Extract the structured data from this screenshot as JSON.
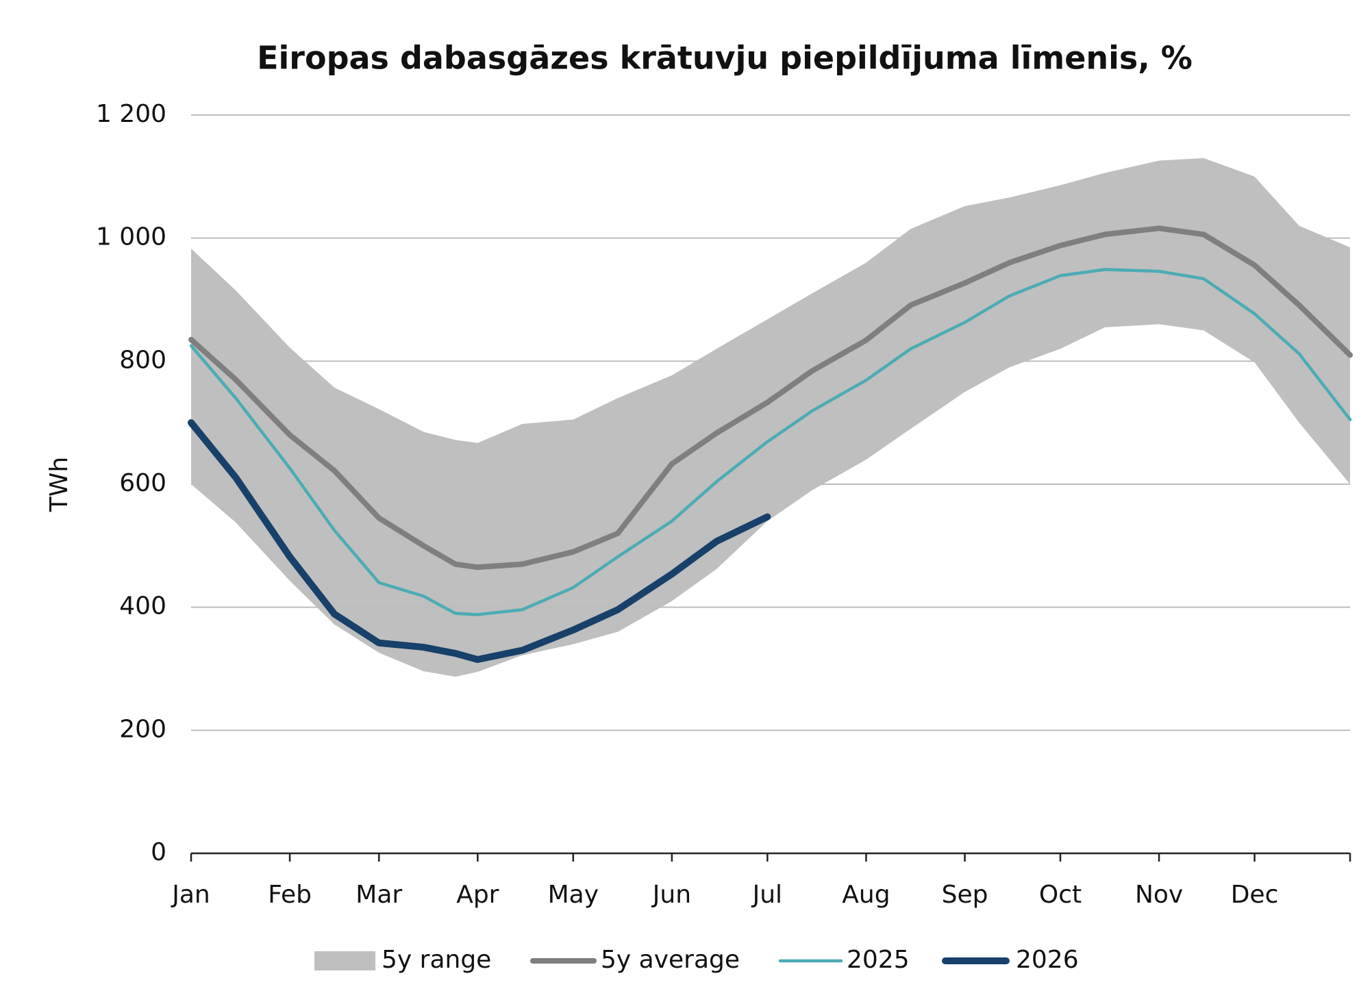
{
  "chart_data": {
    "type": "line",
    "title": "Eiropas dabasgāzes krātuvju piepildījuma līmenis, %",
    "y_label": "TWh",
    "x": [
      1,
      15,
      32,
      46,
      60,
      74,
      84,
      91,
      105,
      121,
      135,
      152,
      166,
      182,
      196,
      213,
      227,
      244,
      258,
      274,
      288,
      305,
      319,
      335,
      349,
      365
    ],
    "xlim": [
      1,
      365
    ],
    "xticks": [
      {
        "value": 1,
        "label": "Jan"
      },
      {
        "value": 32,
        "label": "Feb"
      },
      {
        "value": 60,
        "label": "Mar"
      },
      {
        "value": 91,
        "label": "Apr"
      },
      {
        "value": 121,
        "label": "May"
      },
      {
        "value": 152,
        "label": "Jun"
      },
      {
        "value": 182,
        "label": "Jul"
      },
      {
        "value": 213,
        "label": "Aug"
      },
      {
        "value": 244,
        "label": "Sep"
      },
      {
        "value": 274,
        "label": "Oct"
      },
      {
        "value": 305,
        "label": "Nov"
      },
      {
        "value": 335,
        "label": "Dec"
      }
    ],
    "ylim": [
      0,
      1200
    ],
    "yticks": [
      0,
      200,
      400,
      600,
      800,
      {
        "value": 1000,
        "label": "1 000"
      },
      {
        "value": 1200,
        "label": "1 200"
      }
    ],
    "grid": true,
    "range": {
      "name": "5y range",
      "color": "#bfbfbf",
      "upper": [
        983,
        915,
        822,
        757,
        722,
        685,
        672,
        667,
        698,
        705,
        740,
        777,
        820,
        868,
        910,
        960,
        1015,
        1052,
        1066,
        1086,
        1106,
        1126,
        1130,
        1100,
        1020,
        985
      ],
      "lower": [
        600,
        538,
        443,
        372,
        326,
        296,
        287,
        295,
        322,
        340,
        360,
        410,
        462,
        540,
        590,
        640,
        690,
        750,
        790,
        820,
        855,
        860,
        850,
        798,
        700,
        600
      ]
    },
    "series": [
      {
        "name": "5y average",
        "color": "#7f7f7f",
        "values": [
          835,
          770,
          680,
          622,
          545,
          500,
          470,
          465,
          470,
          490,
          520,
          633,
          683,
          733,
          784,
          834,
          891,
          927,
          960,
          988,
          1006,
          1016,
          1006,
          956,
          891,
          810
        ]
      },
      {
        "name": "2025",
        "color": "#4bacb4",
        "values": [
          825,
          740,
          626,
          525,
          440,
          418,
          390,
          388,
          396,
          432,
          482,
          540,
          604,
          669,
          719,
          769,
          820,
          863,
          906,
          939,
          949,
          946,
          934,
          877,
          812,
          705
        ]
      },
      {
        "name": "2026",
        "color": "#17406a",
        "values": [
          700,
          611,
          482,
          389,
          342,
          335,
          325,
          315,
          330,
          363,
          396,
          454,
          507,
          547,
          null,
          null,
          null,
          null,
          null,
          null,
          null,
          null,
          null,
          null,
          null,
          null
        ]
      }
    ]
  }
}
